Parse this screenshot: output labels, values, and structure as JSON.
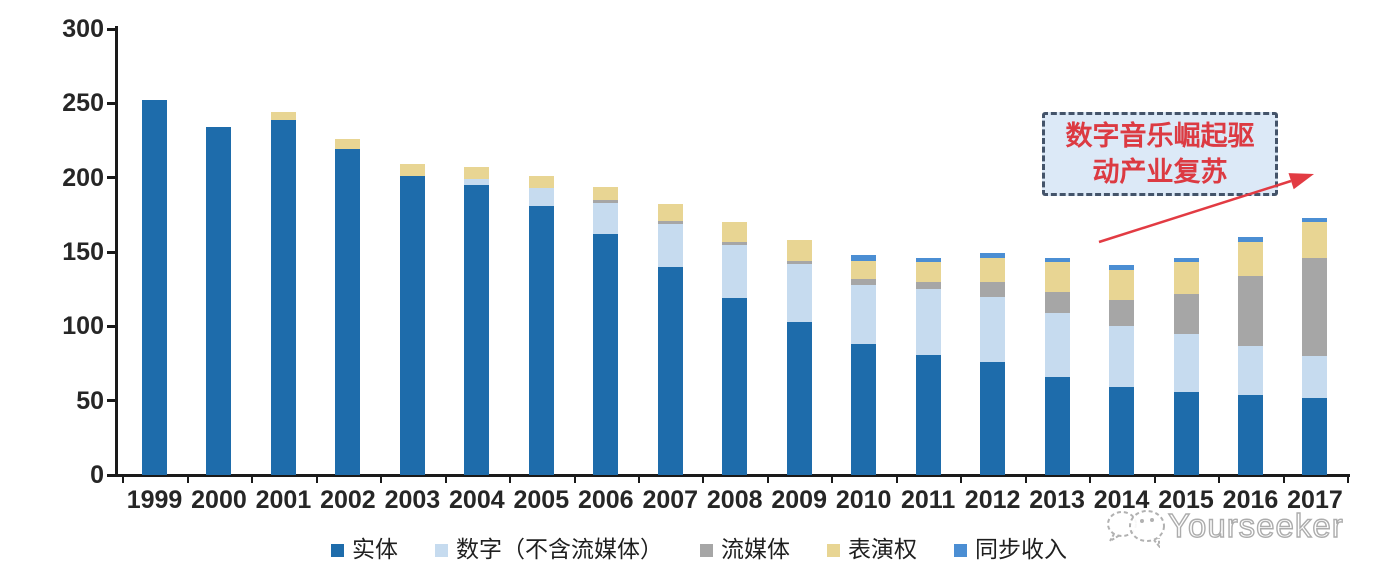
{
  "chart_data": {
    "type": "bar",
    "stacked": true,
    "title": "",
    "xlabel": "",
    "ylabel": "",
    "grid": false,
    "legend_position": "bottom",
    "ylim": [
      0,
      300
    ],
    "yticks": [
      0,
      50,
      100,
      150,
      200,
      250,
      300
    ],
    "categories": [
      "1999",
      "2000",
      "2001",
      "2002",
      "2003",
      "2004",
      "2005",
      "2006",
      "2007",
      "2008",
      "2009",
      "2010",
      "2011",
      "2012",
      "2013",
      "2014",
      "2015",
      "2016",
      "2017"
    ],
    "series": [
      {
        "key": "physical",
        "name": "实体",
        "color": "#1e6cab",
        "values": [
          252,
          234,
          239,
          219,
          201,
          195,
          181,
          162,
          140,
          119,
          103,
          88,
          81,
          76,
          66,
          59,
          56,
          54,
          52
        ]
      },
      {
        "key": "digital-excl-streaming",
        "name": "数字（不含流媒体）",
        "color": "#c6dbef",
        "values": [
          0,
          0,
          0,
          0,
          0,
          4,
          12,
          21,
          29,
          36,
          39,
          40,
          44,
          44,
          43,
          41,
          39,
          33,
          28
        ]
      },
      {
        "key": "streaming",
        "name": "流媒体",
        "color": "#a6a6a6",
        "values": [
          0,
          0,
          0,
          0,
          0,
          0,
          0,
          2,
          2,
          2,
          2,
          4,
          5,
          10,
          14,
          18,
          27,
          47,
          66
        ]
      },
      {
        "key": "performance-rights",
        "name": "表演权",
        "color": "#e8d593",
        "values": [
          0,
          0,
          5,
          7,
          8,
          8,
          8,
          9,
          11,
          13,
          14,
          12,
          13,
          16,
          20,
          20,
          21,
          23,
          24
        ]
      },
      {
        "key": "sync-revenue",
        "name": "同步收入",
        "color": "#4b8ed3",
        "values": [
          0,
          0,
          0,
          0,
          0,
          0,
          0,
          0,
          0,
          0,
          0,
          4,
          3,
          3,
          3,
          3,
          3,
          3,
          3
        ]
      }
    ]
  },
  "annotation": {
    "line1": "数字音乐崛起驱",
    "line2": "动产业复苏",
    "text_color": "#dc3a42",
    "box_fill": "#dce9f7",
    "box_border": "#44546a",
    "arrow_color": "#e23b43"
  },
  "watermark": {
    "text": "Yourseeker",
    "logo": "chat-bubbles-icon",
    "color": "#9e9e9e"
  },
  "colors": {
    "axis": "#1a1a1a",
    "tick_label": "#262626",
    "background": "#ffffff"
  }
}
